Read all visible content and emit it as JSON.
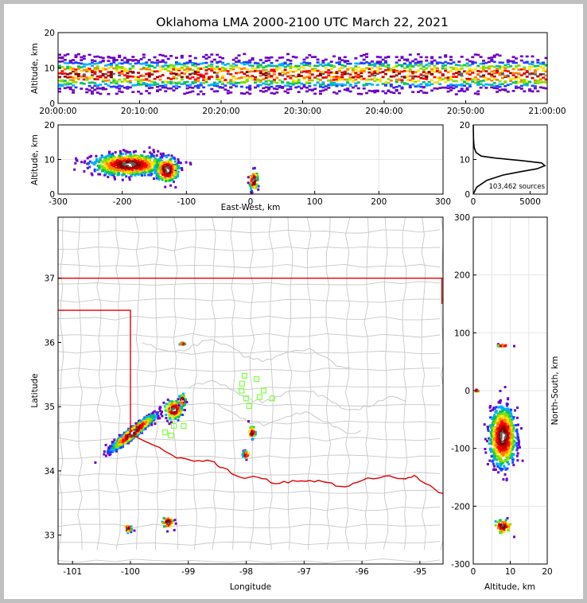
{
  "title": "Oklahoma LMA 2000-2100 UTC March 22, 2021",
  "colors": {
    "state_border": "#e00000",
    "county": "#c8c8c8",
    "sensor": "#80ff40",
    "curve": "#000000"
  },
  "chart_data": [
    {
      "panel": "time-altitude",
      "type": "heatmap",
      "ylabel": "Altitude, km",
      "ylim": [
        0,
        20
      ],
      "yticks": [
        "0",
        "10",
        "20"
      ],
      "xticks": [
        "20:00:00",
        "20:10:00",
        "20:20:00",
        "20:30:00",
        "20:40:00",
        "20:50:00",
        "21:00:00"
      ],
      "xlim_minutes": [
        0,
        60
      ],
      "band": {
        "low_km": 3,
        "high_km": 14,
        "core_km": 8
      }
    },
    {
      "panel": "eastwest-altitude",
      "type": "heatmap",
      "xlabel": "East-West, km",
      "ylabel": "Altitude, km",
      "xlim": [
        -300,
        300
      ],
      "ylim": [
        0,
        20
      ],
      "xticks": [
        "-300",
        "-200",
        "-100",
        "0",
        "100",
        "200",
        "300"
      ],
      "yticks": [
        "0",
        "10",
        "20"
      ],
      "clusters": [
        {
          "x": -190,
          "z": 8.5,
          "sx": 45,
          "sz": 2.5,
          "n": 900
        },
        {
          "x": -130,
          "z": 7,
          "sx": 15,
          "sz": 3,
          "n": 250
        },
        {
          "x": 5,
          "z": 4,
          "sx": 6,
          "sz": 2.5,
          "n": 60
        }
      ]
    },
    {
      "panel": "altitude-histogram",
      "type": "line",
      "xlim": [
        0,
        6500
      ],
      "ylim": [
        0,
        20
      ],
      "xticks": [
        "0",
        "5000"
      ],
      "yticks": [
        "0",
        "10",
        "20"
      ],
      "annotation": "103,462 sources",
      "x": [
        0,
        300,
        1200,
        2600,
        4200,
        5600,
        6300,
        6000,
        4200,
        2000,
        700,
        250,
        80,
        20,
        0
      ],
      "y": [
        0,
        2,
        4,
        5.5,
        6.5,
        7.3,
        8.2,
        9.0,
        9.7,
        10.4,
        11.0,
        12.0,
        13.5,
        16,
        20
      ]
    },
    {
      "panel": "plan-view",
      "type": "scatter",
      "xlabel": "Longitude",
      "ylabel": "Latitude",
      "xlim": [
        -101.25,
        -94.6
      ],
      "ylim": [
        32.55,
        37.95
      ],
      "xticks": [
        "-101",
        "-100",
        "-99",
        "-98",
        "-97",
        "-96",
        "-95"
      ],
      "yticks": [
        "33",
        "34",
        "35",
        "36",
        "37"
      ],
      "sensors": [
        {
          "lon": -98.03,
          "lat": 35.48
        },
        {
          "lon": -97.82,
          "lat": 35.43
        },
        {
          "lon": -98.07,
          "lat": 35.36
        },
        {
          "lon": -98.08,
          "lat": 35.25
        },
        {
          "lon": -97.7,
          "lat": 35.25
        },
        {
          "lon": -98.0,
          "lat": 35.13
        },
        {
          "lon": -97.77,
          "lat": 35.15
        },
        {
          "lon": -97.55,
          "lat": 35.13
        },
        {
          "lon": -97.95,
          "lat": 35.01
        },
        {
          "lon": -99.35,
          "lat": 34.98
        },
        {
          "lon": -99.3,
          "lat": 34.83
        },
        {
          "lon": -99.25,
          "lat": 34.7
        },
        {
          "lon": -99.08,
          "lat": 34.7
        },
        {
          "lon": -99.4,
          "lat": 34.6
        },
        {
          "lon": -99.3,
          "lat": 34.55
        }
      ]
    },
    {
      "panel": "altitude-northsouth",
      "type": "heatmap",
      "xlabel": "Altitude, km",
      "ylabel": "North-South, km",
      "xlim": [
        0,
        20
      ],
      "ylim": [
        -300,
        300
      ],
      "xticks": [
        "0",
        "10",
        "20"
      ],
      "yticks": [
        "-300",
        "-200",
        "-100",
        "0",
        "100",
        "200",
        "300"
      ]
    }
  ]
}
